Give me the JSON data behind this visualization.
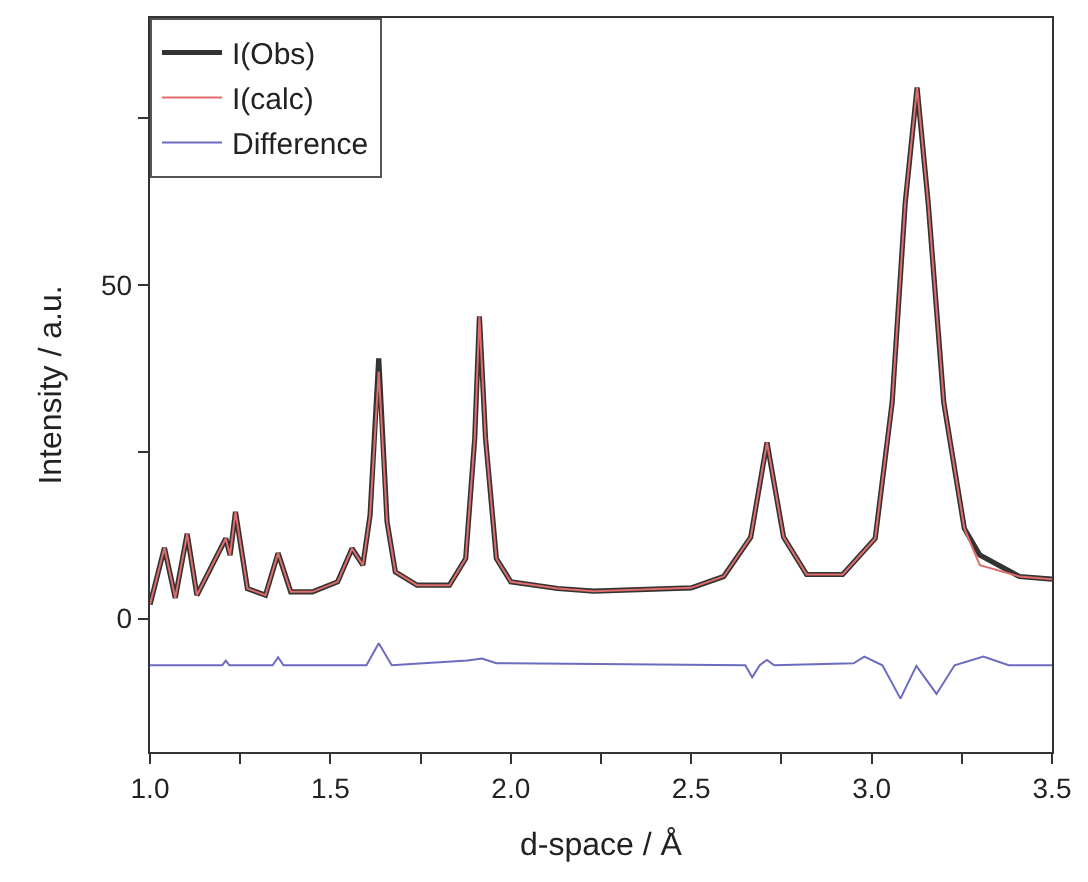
{
  "chart_data": {
    "type": "line",
    "xlabel": "d-space / Å",
    "ylabel": "Intensity / a.u.",
    "x": [
      1.0,
      1.04,
      1.07,
      1.103,
      1.13,
      1.21,
      1.222,
      1.237,
      1.27,
      1.32,
      1.355,
      1.39,
      1.45,
      1.52,
      1.56,
      1.59,
      1.61,
      1.634,
      1.657,
      1.68,
      1.74,
      1.83,
      1.875,
      1.9,
      1.913,
      1.93,
      1.96,
      2.0,
      2.13,
      2.23,
      2.5,
      2.59,
      2.665,
      2.71,
      2.756,
      2.82,
      2.92,
      3.01,
      3.057,
      3.093,
      3.126,
      3.157,
      3.2,
      3.257,
      3.3,
      3.41,
      3.5
    ],
    "series": [
      {
        "name": "I(Obs)",
        "color": "#333333",
        "values": [
          2.1,
          10.6,
          3.1,
          12.7,
          3.5,
          12.0,
          9.5,
          16,
          4.5,
          3.5,
          9.8,
          4,
          4,
          5.5,
          10.5,
          8,
          15.5,
          39,
          14.5,
          7,
          5,
          5,
          9,
          27,
          45.3,
          27,
          9,
          5.5,
          4.5,
          4.1,
          4.6,
          6.3,
          12.2,
          26.4,
          12.2,
          6.6,
          6.6,
          12,
          32.4,
          62.2,
          79.6,
          62.2,
          32.4,
          13.5,
          9.5,
          6.3,
          5.9
        ]
      },
      {
        "name": "I(calc)",
        "color": "#e06c6c",
        "values": [
          2.1,
          10.6,
          3.1,
          12.7,
          3.5,
          12.0,
          9.5,
          16,
          4.5,
          3.5,
          9.8,
          4,
          4,
          5.5,
          10.5,
          8,
          15.5,
          37,
          14.5,
          7,
          5,
          5,
          9,
          27,
          45.3,
          27,
          9,
          5.5,
          4.5,
          4.1,
          4.6,
          6.3,
          12.2,
          26.4,
          12.2,
          6.6,
          6.6,
          12,
          32.4,
          62.2,
          79.6,
          62.2,
          32.4,
          13.5,
          8,
          6.3,
          5.9
        ]
      },
      {
        "name": "Difference",
        "color": "#6b6bc0",
        "x": [
          1.0,
          1.2,
          1.21,
          1.22,
          1.34,
          1.355,
          1.37,
          1.6,
          1.634,
          1.67,
          1.88,
          1.92,
          1.96,
          2.65,
          2.669,
          2.69,
          2.71,
          2.73,
          2.95,
          2.98,
          3.03,
          3.08,
          3.124,
          3.18,
          3.23,
          3.31,
          3.38,
          3.5
        ],
        "values": [
          -7,
          -7,
          -6.3,
          -7,
          -7,
          -5.8,
          -7,
          -7,
          -3.7,
          -7,
          -6.3,
          -6,
          -6.7,
          -7,
          -8.8,
          -7,
          -6.2,
          -7,
          -6.7,
          -5.7,
          -7,
          -12,
          -7.1,
          -11.3,
          -7,
          -5.7,
          -7,
          -7
        ]
      }
    ],
    "xlim": [
      1.0,
      3.5
    ],
    "xticks": [
      {
        "value": 1.0,
        "label": "1.0"
      },
      {
        "value": 1.25,
        "label": null
      },
      {
        "value": 1.5,
        "label": "1.5"
      },
      {
        "value": 1.75,
        "label": null
      },
      {
        "value": 2.0,
        "label": "2.0"
      },
      {
        "value": 2.25,
        "label": null
      },
      {
        "value": 2.5,
        "label": "2.5"
      },
      {
        "value": 2.75,
        "label": null
      },
      {
        "value": 3.0,
        "label": "3.0"
      },
      {
        "value": 3.25,
        "label": null
      },
      {
        "value": 3.5,
        "label": "3.5"
      }
    ],
    "ylim": [
      -20,
      90
    ],
    "yticks": [
      0,
      {
        "value": 25,
        "label": null
      },
      50,
      {
        "value": 75,
        "label": null
      }
    ],
    "legend": "top left",
    "marker": "none",
    "line_style": "solid"
  }
}
